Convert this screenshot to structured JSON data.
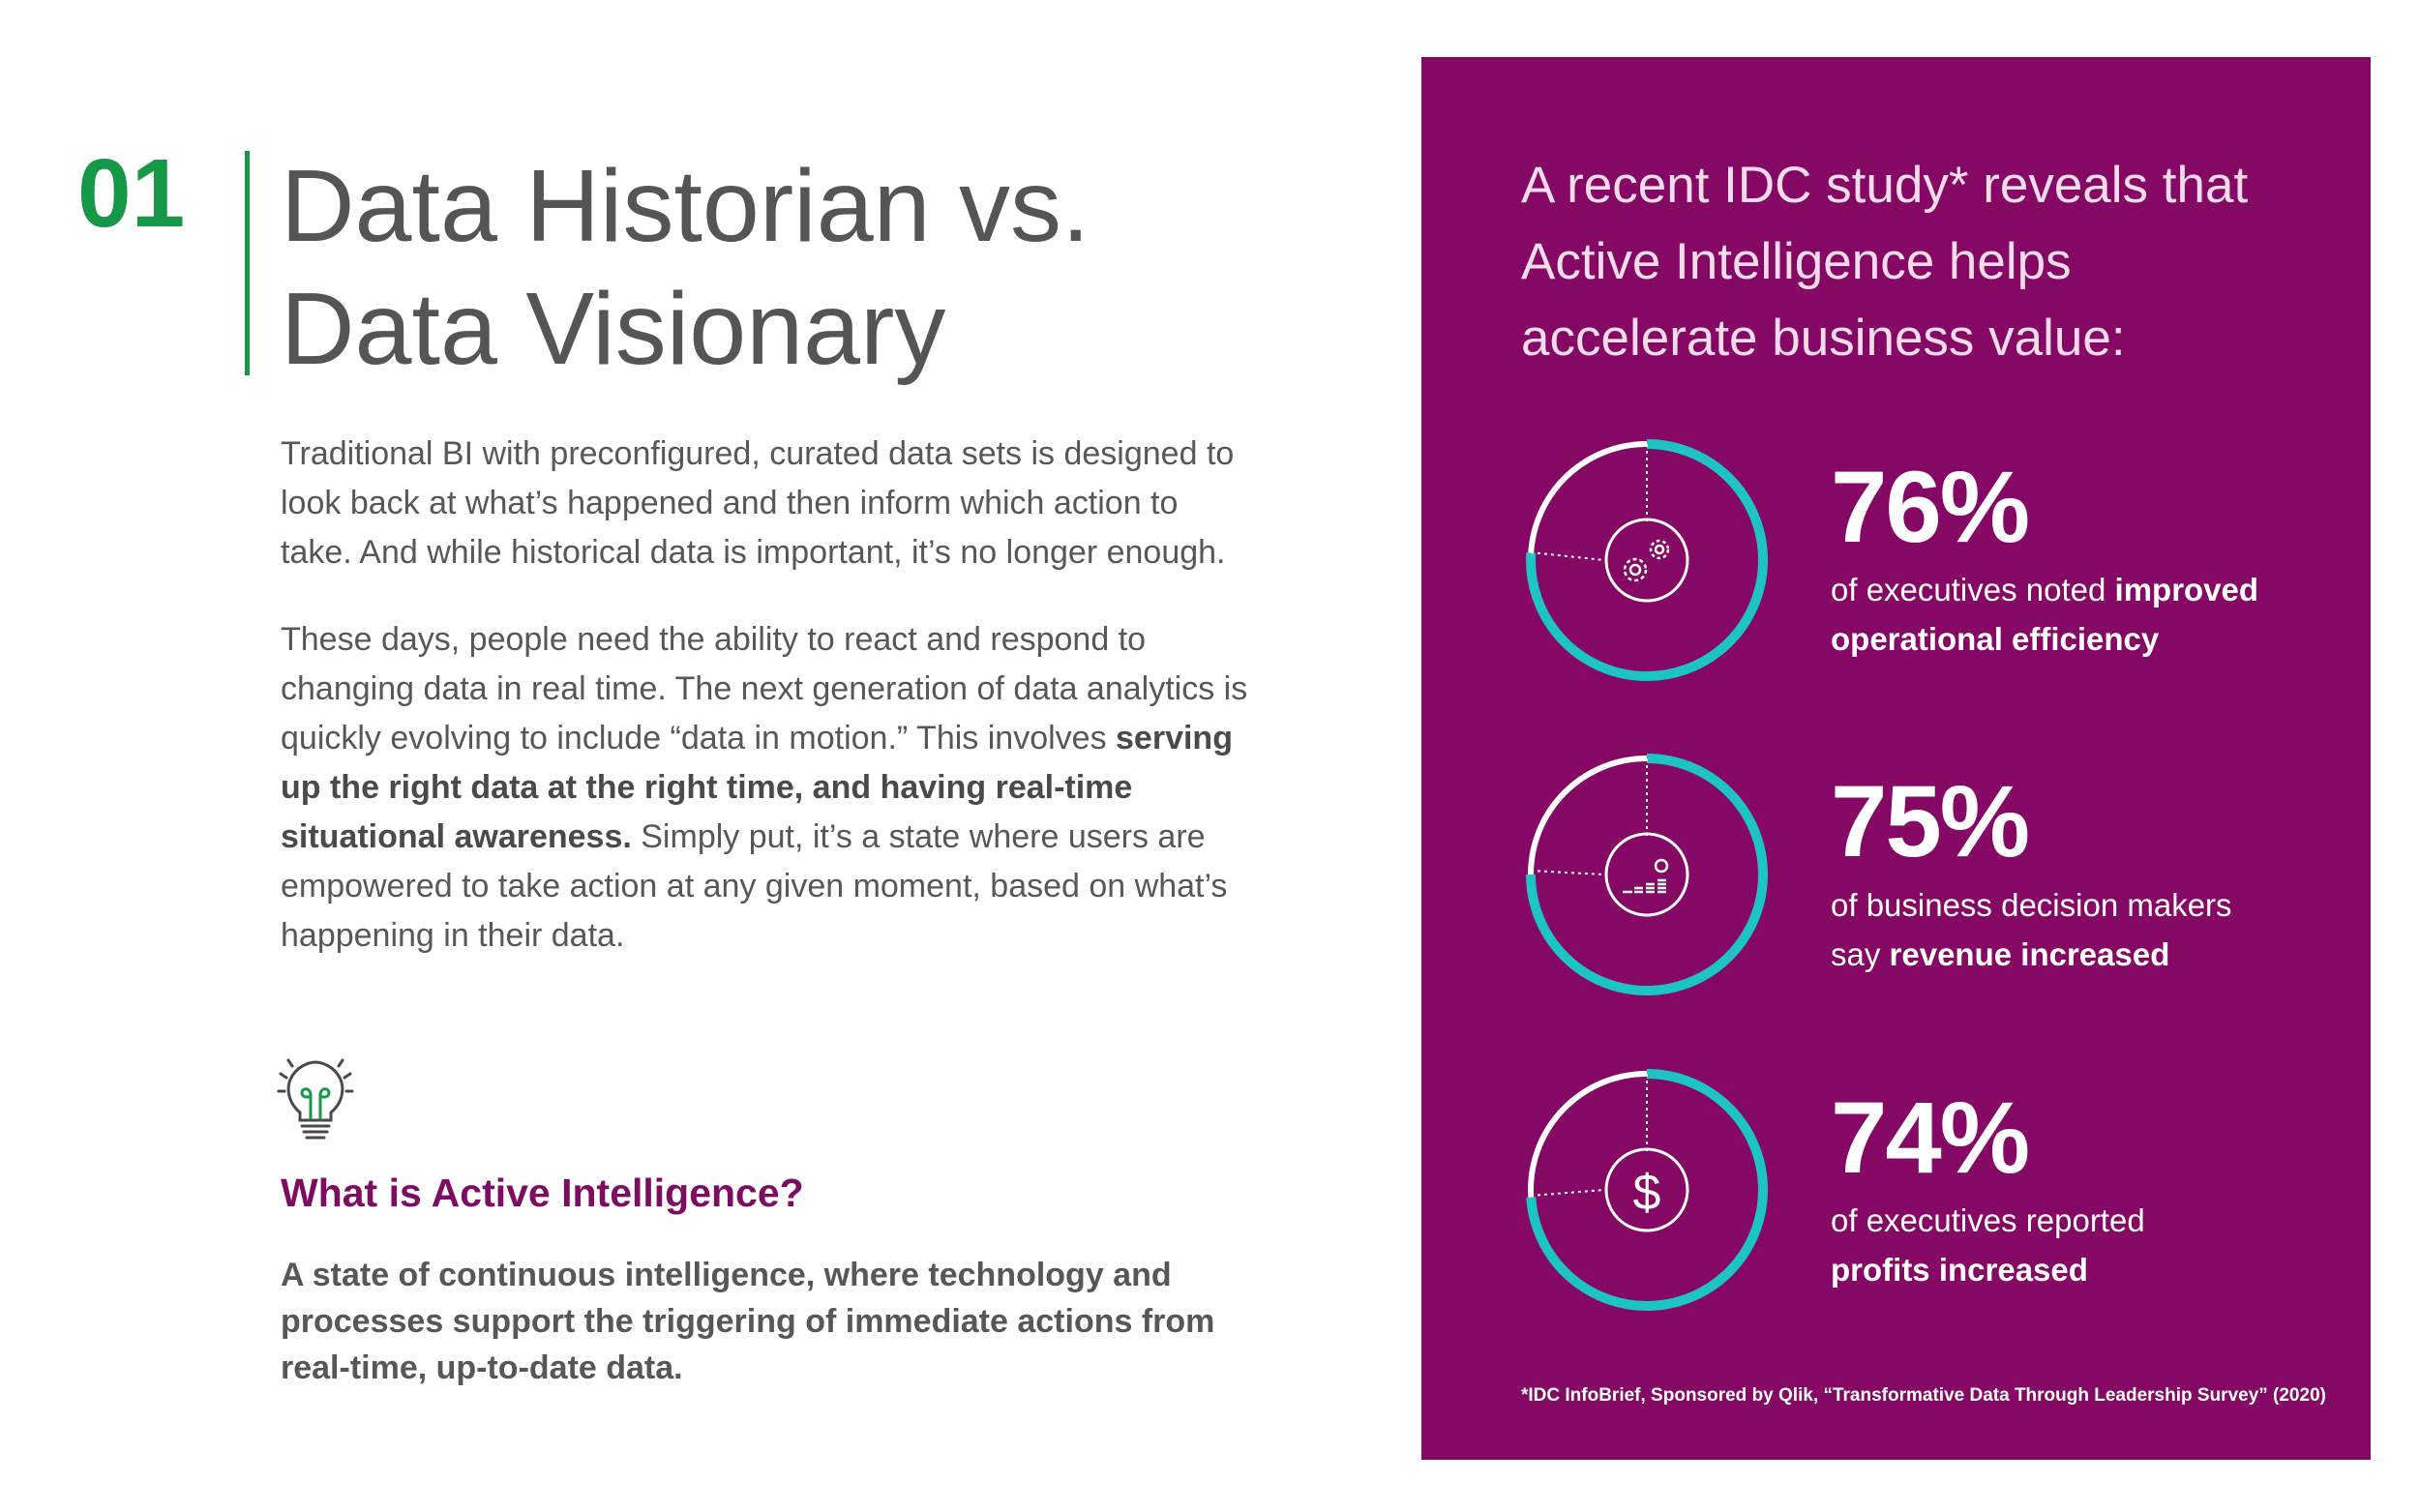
{
  "header": {
    "number": "01",
    "title_line1": "Data Historian vs.",
    "title_line2": "Data Visionary"
  },
  "body": {
    "para1": "Traditional BI with preconfigured, curated data sets is designed to look back at what’s happened and then inform which action to take. And while historical data is important, it’s no longer enough.",
    "para2_start": "These days, people need the ability to react and respond to changing data in real time. The next generation of data analytics is quickly evolving to include “data in motion.” This involves ",
    "para2_bold": "serving up the right data at the right time, and having real-time situational awareness.",
    "para2_end": " Simply put, it’s a state where users are empowered to take action at any given moment, based on what’s happening in their data."
  },
  "active_intelligence": {
    "heading": "What is Active Intelligence?",
    "definition": "A state of continuous intelligence, where technology and processes support the triggering of immediate actions from real-time, up-to-date data."
  },
  "panel": {
    "intro": "A recent IDC study* reveals that Active Intelligence helps accelerate business value:",
    "stats": [
      {
        "value": "76%",
        "desc_prefix": "of executives noted ",
        "desc_bold": "improved operational efficiency",
        "icon": "gears-icon",
        "percent": 76
      },
      {
        "value": "75%",
        "desc_prefix": "of business decision makers say ",
        "desc_bold": "revenue increased",
        "icon": "revenue-chart-icon",
        "percent": 75
      },
      {
        "value": "74%",
        "desc_prefix": "of executives reported ",
        "desc_bold": "profits increased",
        "icon": "dollar-icon",
        "percent": 74
      }
    ],
    "footnote": "*IDC InfoBrief, Sponsored by Qlik, “Transformative Data Through Leadership Survey” (2020)"
  },
  "colors": {
    "accent_green": "#159848",
    "panel_purple": "#850864",
    "heading_purple": "#7d0d63",
    "ring_teal": "#1dc4c4",
    "body_gray": "#575757"
  }
}
